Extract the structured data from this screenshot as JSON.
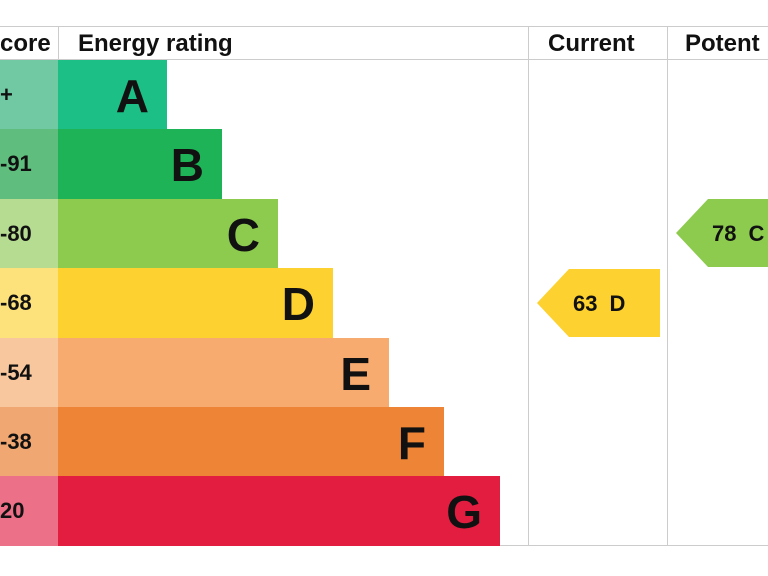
{
  "header": {
    "score": "core",
    "rating": "Energy rating",
    "current": "Current",
    "potential": "Potent"
  },
  "bands": [
    {
      "score": "+",
      "letter": "A",
      "color": "#1cbf85",
      "light": "#71c9a3"
    },
    {
      "score": "-91",
      "letter": "B",
      "color": "#1db356",
      "light": "#5fbe7e"
    },
    {
      "score": "-80",
      "letter": "C",
      "color": "#8dcb4f",
      "light": "#b6dc92"
    },
    {
      "score": "-68",
      "letter": "D",
      "color": "#fdd12f",
      "light": "#fde27c"
    },
    {
      "score": "-54",
      "letter": "E",
      "color": "#f8ab6e",
      "light": "#f9c79d"
    },
    {
      "score": "-38",
      "letter": "F",
      "color": "#ee8436",
      "light": "#f1a771"
    },
    {
      "score": "20",
      "letter": "G",
      "color": "#e31d40",
      "light": "#ec7087"
    }
  ],
  "current": {
    "value": 63,
    "letter": "D"
  },
  "potential": {
    "value": 78,
    "letter": "C"
  }
}
